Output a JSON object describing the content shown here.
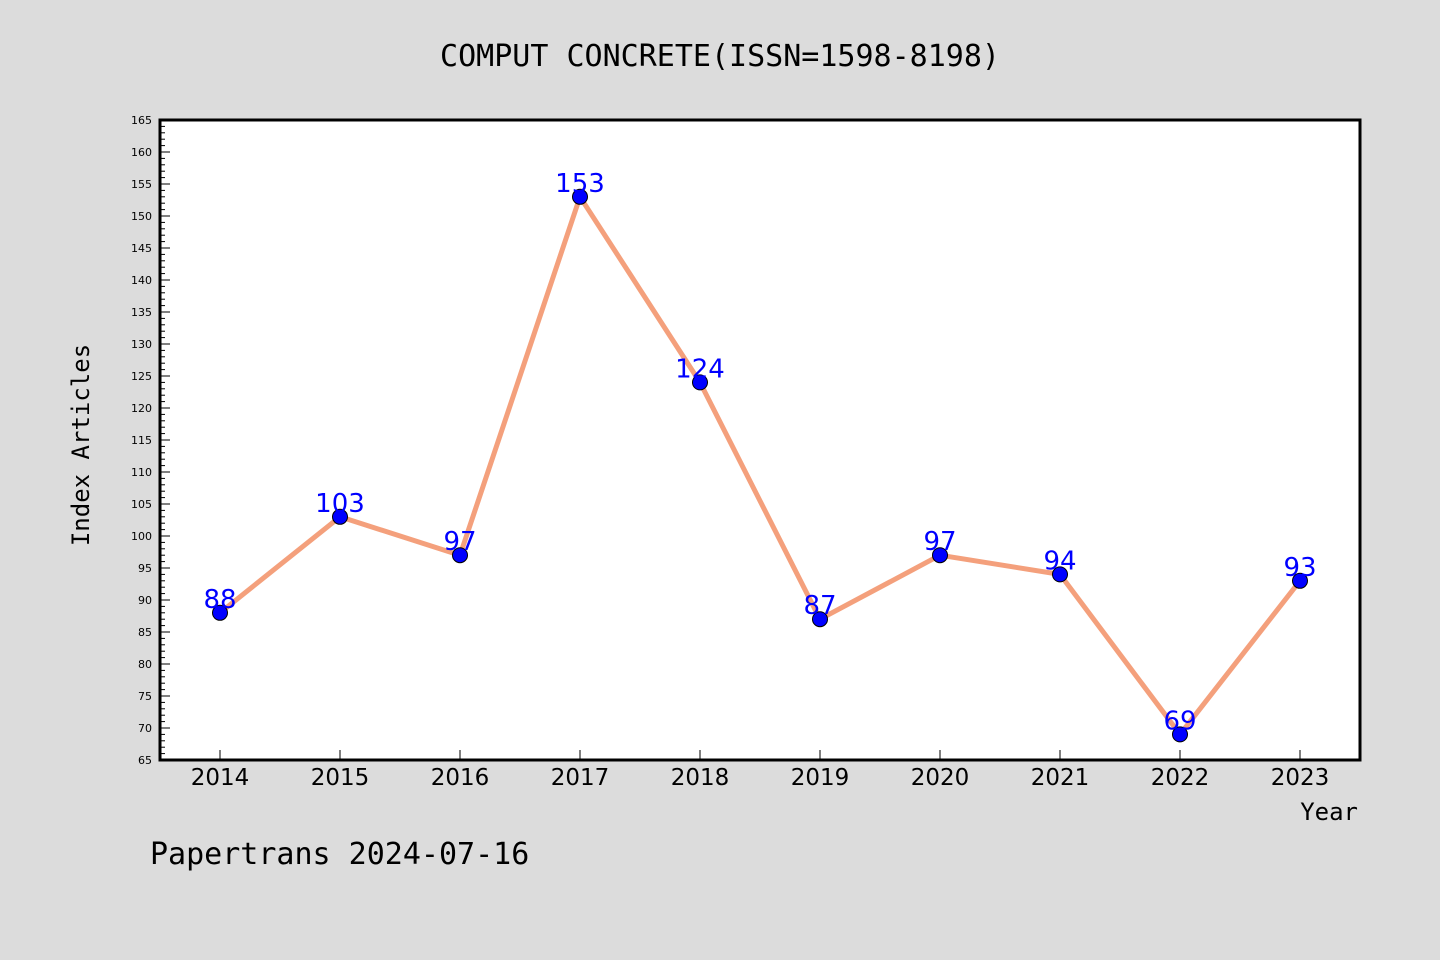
{
  "chart_data": {
    "type": "line",
    "title": "COMPUT CONCRETE(ISSN=1598-8198)",
    "xlabel": "Year",
    "ylabel": "Index Articles",
    "categories": [
      "2014",
      "2015",
      "2016",
      "2017",
      "2018",
      "2019",
      "2020",
      "2021",
      "2022",
      "2023"
    ],
    "series": [
      {
        "values": [
          88,
          103,
          97,
          153,
          124,
          87,
          97,
          94,
          69,
          93
        ]
      }
    ],
    "ylim": [
      65,
      165
    ],
    "ytick_step": 5,
    "grid": false,
    "line_color": "#f4a07c",
    "marker_color": "#0000ff",
    "label_color": "#0000ff",
    "background_color": "#dcdcdc",
    "plot_background_color": "#ffffff"
  },
  "footer": {
    "text": "Papertrans 2024-07-16"
  }
}
